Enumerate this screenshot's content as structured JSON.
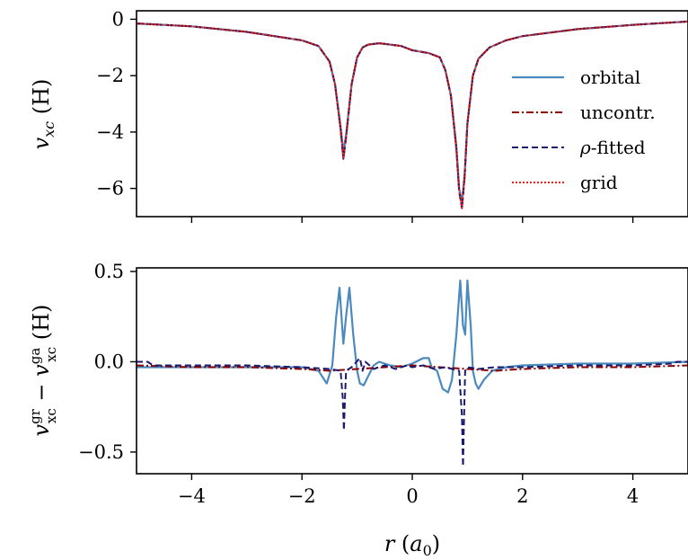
{
  "chart_data": [
    {
      "type": "line",
      "ylabel": "v_xc (H)",
      "xlim": [
        -5,
        5
      ],
      "ylim": [
        -7,
        0.3
      ],
      "yticks": [
        0,
        -2,
        -4,
        -6
      ],
      "ytick_labels": [
        "0",
        "−2",
        "−4",
        "−6"
      ],
      "legend_position": "right",
      "grid": false,
      "series": [
        {
          "name": "orbital",
          "color": "#4a8abe",
          "style": "solid",
          "x": [
            -5,
            -4,
            -3,
            -2,
            -1.7,
            -1.5,
            -1.4,
            -1.3,
            -1.25,
            -1.2,
            -1.1,
            -1.0,
            -0.9,
            -0.8,
            -0.6,
            -0.4,
            -0.2,
            0,
            0.3,
            0.5,
            0.6,
            0.7,
            0.8,
            0.85,
            0.9,
            0.95,
            1.0,
            1.1,
            1.2,
            1.4,
            1.7,
            2,
            3,
            4,
            5
          ],
          "y": [
            -0.15,
            -0.25,
            -0.45,
            -0.75,
            -0.95,
            -1.5,
            -2.3,
            -3.8,
            -4.7,
            -4.1,
            -2.3,
            -1.35,
            -1.0,
            -0.9,
            -0.85,
            -0.9,
            -0.95,
            -1.1,
            -1.2,
            -1.35,
            -1.8,
            -2.7,
            -4.5,
            -6.0,
            -6.5,
            -5.5,
            -3.7,
            -2.0,
            -1.4,
            -1.0,
            -0.75,
            -0.6,
            -0.35,
            -0.2,
            -0.08
          ]
        },
        {
          "name": "uncontr.",
          "color": "#8b0000",
          "style": "dashdot",
          "x": [
            -5,
            -4,
            -3,
            -2,
            -1.7,
            -1.5,
            -1.4,
            -1.3,
            -1.25,
            -1.2,
            -1.1,
            -1.0,
            -0.9,
            -0.8,
            -0.6,
            -0.4,
            -0.2,
            0,
            0.3,
            0.5,
            0.6,
            0.7,
            0.8,
            0.85,
            0.9,
            0.95,
            1.0,
            1.1,
            1.2,
            1.4,
            1.7,
            2,
            3,
            4,
            5
          ],
          "y": [
            -0.15,
            -0.25,
            -0.45,
            -0.75,
            -0.95,
            -1.5,
            -2.3,
            -3.9,
            -4.95,
            -4.2,
            -2.3,
            -1.35,
            -1.0,
            -0.9,
            -0.85,
            -0.9,
            -0.95,
            -1.1,
            -1.2,
            -1.35,
            -1.8,
            -2.7,
            -4.6,
            -6.1,
            -6.7,
            -5.6,
            -3.7,
            -2.0,
            -1.4,
            -1.0,
            -0.75,
            -0.6,
            -0.35,
            -0.2,
            -0.08
          ]
        },
        {
          "name": "ρ-fitted",
          "color": "#1a1a6e",
          "style": "dashed",
          "x": [
            -5,
            -4,
            -3,
            -2,
            -1.7,
            -1.5,
            -1.4,
            -1.3,
            -1.25,
            -1.2,
            -1.1,
            -1.0,
            -0.9,
            -0.8,
            -0.6,
            -0.4,
            -0.2,
            0,
            0.3,
            0.5,
            0.6,
            0.7,
            0.8,
            0.85,
            0.9,
            0.95,
            1.0,
            1.1,
            1.2,
            1.4,
            1.7,
            2,
            3,
            4,
            5
          ],
          "y": [
            -0.15,
            -0.25,
            -0.45,
            -0.75,
            -0.95,
            -1.5,
            -2.3,
            -3.9,
            -4.95,
            -4.2,
            -2.3,
            -1.35,
            -1.0,
            -0.9,
            -0.85,
            -0.9,
            -0.95,
            -1.1,
            -1.2,
            -1.35,
            -1.8,
            -2.7,
            -4.6,
            -6.1,
            -6.7,
            -5.6,
            -3.7,
            -2.0,
            -1.4,
            -1.0,
            -0.75,
            -0.6,
            -0.35,
            -0.2,
            -0.08
          ]
        },
        {
          "name": "grid",
          "color": "#e8201e",
          "style": "dotted",
          "x": [
            -5,
            -4,
            -3,
            -2,
            -1.7,
            -1.5,
            -1.4,
            -1.3,
            -1.25,
            -1.2,
            -1.1,
            -1.0,
            -0.9,
            -0.8,
            -0.6,
            -0.4,
            -0.2,
            0,
            0.3,
            0.5,
            0.6,
            0.7,
            0.8,
            0.85,
            0.9,
            0.95,
            1.0,
            1.1,
            1.2,
            1.4,
            1.7,
            2,
            3,
            4,
            5
          ],
          "y": [
            -0.15,
            -0.25,
            -0.45,
            -0.75,
            -0.95,
            -1.5,
            -2.3,
            -3.9,
            -4.95,
            -4.2,
            -2.3,
            -1.35,
            -1.0,
            -0.9,
            -0.85,
            -0.9,
            -0.95,
            -1.1,
            -1.2,
            -1.35,
            -1.8,
            -2.7,
            -4.6,
            -6.1,
            -6.7,
            -5.6,
            -3.7,
            -2.0,
            -1.4,
            -1.0,
            -0.75,
            -0.6,
            -0.35,
            -0.2,
            -0.08
          ]
        }
      ]
    },
    {
      "type": "line",
      "xlabel": "r (a_0)",
      "ylabel": "v_xc^gr − v_xc^ga (H)",
      "xlim": [
        -5,
        5
      ],
      "ylim": [
        -0.62,
        0.52
      ],
      "xticks": [
        -4,
        -2,
        0,
        2,
        4
      ],
      "xtick_labels": [
        "−4",
        "−2",
        "0",
        "2",
        "4"
      ],
      "yticks": [
        0.5,
        0.0,
        -0.5
      ],
      "ytick_labels": [
        "0.5",
        "0.0",
        "−0.5"
      ],
      "grid": false,
      "series": [
        {
          "name": "orbital",
          "color": "#4a8abe",
          "style": "solid",
          "x": [
            -5,
            -4,
            -3,
            -2,
            -1.7,
            -1.55,
            -1.45,
            -1.38,
            -1.32,
            -1.25,
            -1.2,
            -1.14,
            -1.07,
            -1.0,
            -0.95,
            -0.88,
            -0.8,
            -0.7,
            -0.6,
            -0.4,
            -0.2,
            0,
            0.2,
            0.3,
            0.35,
            0.45,
            0.55,
            0.65,
            0.72,
            0.8,
            0.87,
            0.92,
            0.96,
            1.0,
            1.06,
            1.1,
            1.15,
            1.2,
            1.3,
            1.45,
            1.7,
            2,
            3,
            4,
            5
          ],
          "y": [
            -0.03,
            -0.03,
            -0.03,
            -0.03,
            -0.05,
            -0.12,
            -0.02,
            0.25,
            0.41,
            0.1,
            0.25,
            0.41,
            0.15,
            -0.05,
            -0.12,
            -0.13,
            -0.08,
            -0.02,
            0.0,
            -0.02,
            -0.03,
            -0.01,
            0.02,
            0.02,
            -0.03,
            -0.05,
            -0.15,
            -0.17,
            -0.1,
            0.15,
            0.45,
            0.2,
            0.15,
            0.45,
            0.2,
            -0.05,
            -0.12,
            -0.15,
            -0.1,
            -0.05,
            -0.03,
            -0.02,
            -0.01,
            -0.01,
            0.0
          ]
        },
        {
          "name": "uncontr.",
          "color": "#8b0000",
          "style": "dashdot",
          "x": [
            -5,
            -4,
            -3,
            -2,
            -1.5,
            -1.0,
            -0.5,
            0,
            0.5,
            1.0,
            1.5,
            2,
            3,
            4,
            5
          ],
          "y": [
            -0.02,
            -0.03,
            -0.03,
            -0.04,
            -0.05,
            -0.04,
            -0.03,
            -0.02,
            -0.03,
            -0.04,
            -0.05,
            -0.04,
            -0.03,
            -0.03,
            -0.02
          ]
        },
        {
          "name": "ρ-fitted",
          "color": "#1a1a6e",
          "style": "dashed",
          "x": [
            -5,
            -4.8,
            -4.7,
            -4,
            -3,
            -2,
            -1.5,
            -1.3,
            -1.26,
            -1.24,
            -1.22,
            -1.2,
            -1.1,
            -0.95,
            -0.9,
            -0.85,
            -0.7,
            -0.5,
            -0.3,
            -0.1,
            0,
            0.2,
            0.4,
            0.6,
            0.85,
            0.9,
            0.92,
            0.94,
            0.96,
            1.0,
            1.2,
            1.5,
            2,
            3,
            4,
            4.7,
            4.8,
            5
          ],
          "y": [
            0.0,
            0.0,
            -0.02,
            -0.02,
            -0.02,
            -0.03,
            -0.04,
            -0.05,
            -0.2,
            -0.38,
            -0.2,
            -0.05,
            -0.03,
            0.02,
            -0.05,
            0.0,
            -0.04,
            -0.02,
            -0.04,
            -0.02,
            -0.03,
            -0.02,
            -0.04,
            -0.03,
            -0.05,
            -0.3,
            -0.58,
            -0.3,
            -0.05,
            -0.03,
            -0.04,
            -0.03,
            -0.03,
            -0.02,
            -0.02,
            -0.01,
            0.0,
            0.0
          ]
        }
      ]
    }
  ]
}
